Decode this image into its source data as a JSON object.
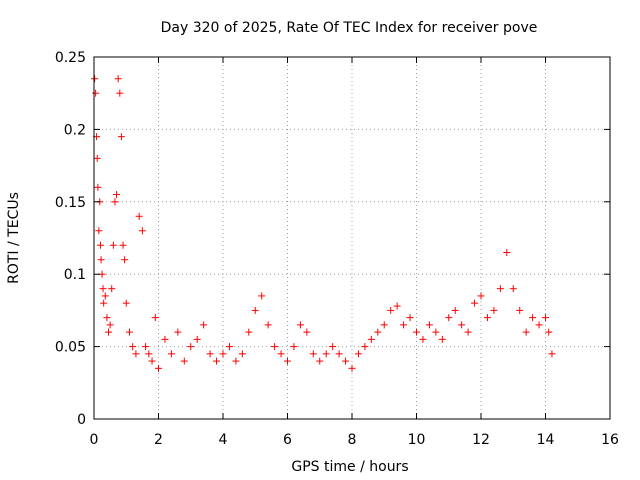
{
  "chart_data": {
    "type": "scatter",
    "title": "Day 320 of 2025, Rate Of TEC Index for receiver pove",
    "xlabel": "GPS time / hours",
    "ylabel": "ROTI / TECUs",
    "xlim": [
      0,
      16
    ],
    "ylim": [
      0,
      0.25
    ],
    "xticks": [
      0,
      2,
      4,
      6,
      8,
      10,
      12,
      14,
      16
    ],
    "yticks": [
      0,
      0.05,
      0.1,
      0.15,
      0.2,
      0.25
    ],
    "ytick_labels": [
      "0",
      "0.05",
      "0.1",
      "0.15",
      "0.2",
      "0.25"
    ],
    "grid": true,
    "marker": "+",
    "color": "#ff0000",
    "series": [
      {
        "x": [
          0.02,
          0.05,
          0.08,
          0.1,
          0.12,
          0.15,
          0.18,
          0.2,
          0.22,
          0.25,
          0.28,
          0.3,
          0.35,
          0.4,
          0.45,
          0.5,
          0.55,
          0.6,
          0.65,
          0.7,
          0.75,
          0.8,
          0.85,
          0.9,
          0.95,
          1.0,
          1.1,
          1.2,
          1.3,
          1.4,
          1.5,
          1.6,
          1.7,
          1.8,
          1.9,
          2.0,
          2.2,
          2.4,
          2.6,
          2.8,
          3.0,
          3.2,
          3.4,
          3.6,
          3.8,
          4.0,
          4.2,
          4.4,
          4.6,
          4.8,
          5.0,
          5.2,
          5.4,
          5.6,
          5.8,
          6.0,
          6.2,
          6.4,
          6.6,
          6.8,
          7.0,
          7.2,
          7.4,
          7.6,
          7.8,
          8.0,
          8.2,
          8.4,
          8.6,
          8.8,
          9.0,
          9.2,
          9.4,
          9.6,
          9.8,
          10.0,
          10.2,
          10.4,
          10.6,
          10.8,
          11.0,
          11.2,
          11.4,
          11.6,
          11.8,
          12.0,
          12.2,
          12.4,
          12.6,
          12.8,
          13.0,
          13.2,
          13.4,
          13.6,
          13.8,
          14.0,
          14.1,
          14.2
        ],
        "y": [
          0.235,
          0.225,
          0.195,
          0.18,
          0.16,
          0.13,
          0.15,
          0.12,
          0.11,
          0.1,
          0.09,
          0.08,
          0.085,
          0.07,
          0.06,
          0.065,
          0.09,
          0.12,
          0.15,
          0.155,
          0.235,
          0.225,
          0.195,
          0.12,
          0.11,
          0.08,
          0.06,
          0.05,
          0.045,
          0.14,
          0.13,
          0.05,
          0.045,
          0.04,
          0.07,
          0.035,
          0.055,
          0.045,
          0.06,
          0.04,
          0.05,
          0.055,
          0.065,
          0.045,
          0.04,
          0.045,
          0.05,
          0.04,
          0.045,
          0.06,
          0.075,
          0.085,
          0.065,
          0.05,
          0.045,
          0.04,
          0.05,
          0.065,
          0.06,
          0.045,
          0.04,
          0.045,
          0.05,
          0.045,
          0.04,
          0.035,
          0.045,
          0.05,
          0.055,
          0.06,
          0.065,
          0.075,
          0.078,
          0.065,
          0.07,
          0.06,
          0.055,
          0.065,
          0.06,
          0.055,
          0.07,
          0.075,
          0.065,
          0.06,
          0.08,
          0.085,
          0.07,
          0.075,
          0.09,
          0.115,
          0.09,
          0.075,
          0.06,
          0.07,
          0.065,
          0.07,
          0.06,
          0.045
        ]
      }
    ]
  }
}
